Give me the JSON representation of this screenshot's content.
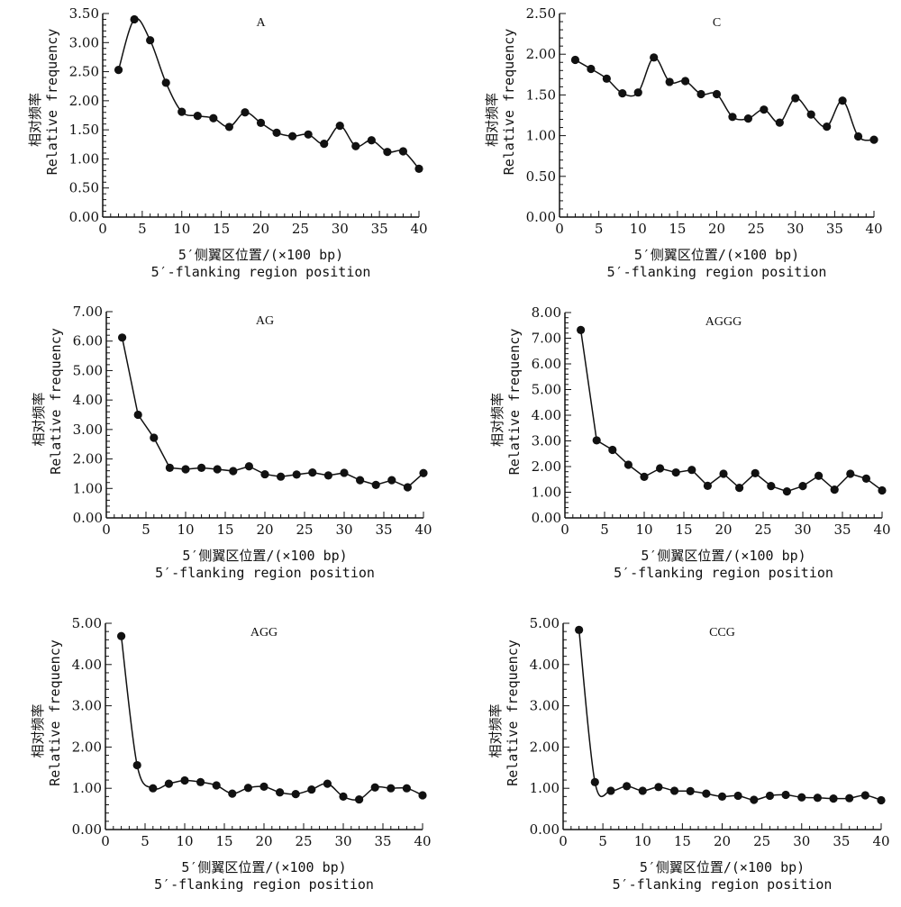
{
  "chart_data": [
    {
      "type": "line",
      "title": "A",
      "xlabel_cn": "5′侧翼区位置/(×100 bp)",
      "xlabel_en": "5′-flanking region position",
      "ylabel_cn": "相对频率",
      "ylabel_en": "Relative frequency",
      "xlim": [
        0,
        40
      ],
      "ylim": [
        0,
        3.5
      ],
      "xticks": [
        "0",
        "5",
        "10",
        "15",
        "20",
        "25",
        "30",
        "35",
        "40"
      ],
      "yticks": [
        "0.00",
        "0.50",
        "1.00",
        "1.50",
        "2.00",
        "2.50",
        "3.00",
        "3.50"
      ],
      "smooth": true,
      "x": [
        2,
        4,
        6,
        8,
        10,
        12,
        14,
        16,
        18,
        20,
        22,
        24,
        26,
        28,
        30,
        32,
        34,
        36,
        38,
        40
      ],
      "values": [
        2.53,
        3.4,
        3.04,
        2.31,
        1.81,
        1.74,
        1.7,
        1.55,
        1.8,
        1.62,
        1.45,
        1.39,
        1.42,
        1.26,
        1.57,
        1.22,
        1.32,
        1.12,
        1.13,
        0.83
      ]
    },
    {
      "type": "line",
      "title": "C",
      "xlabel_cn": "5′侧翼区位置/(×100 bp)",
      "xlabel_en": "5′-flanking region position",
      "ylabel_cn": "相对频率",
      "ylabel_en": "Relative frequency",
      "xlim": [
        0,
        40
      ],
      "ylim": [
        0,
        2.5
      ],
      "xticks": [
        "0",
        "5",
        "10",
        "15",
        "20",
        "25",
        "30",
        "35",
        "40"
      ],
      "yticks": [
        "0.00",
        "0.50",
        "1.00",
        "1.50",
        "2.00",
        "2.50"
      ],
      "smooth": true,
      "x": [
        2,
        4,
        6,
        8,
        10,
        12,
        14,
        16,
        18,
        20,
        22,
        24,
        26,
        28,
        30,
        32,
        34,
        36,
        38,
        40
      ],
      "values": [
        1.93,
        1.82,
        1.7,
        1.52,
        1.53,
        1.96,
        1.66,
        1.67,
        1.51,
        1.51,
        1.23,
        1.21,
        1.32,
        1.16,
        1.46,
        1.26,
        1.11,
        1.43,
        0.99,
        0.95
      ]
    },
    {
      "type": "line",
      "title": "AG",
      "xlabel_cn": "5′侧翼区位置/(×100 bp)",
      "xlabel_en": "5′-flanking region position",
      "ylabel_cn": "相对频率",
      "ylabel_en": "Relative frequency",
      "xlim": [
        0,
        40
      ],
      "ylim": [
        0,
        7
      ],
      "xticks": [
        "0",
        "5",
        "10",
        "15",
        "20",
        "25",
        "30",
        "35",
        "40"
      ],
      "yticks": [
        "0.00",
        "1.00",
        "2.00",
        "3.00",
        "4.00",
        "5.00",
        "6.00",
        "7.00"
      ],
      "smooth": false,
      "x": [
        2,
        4,
        6,
        8,
        10,
        12,
        14,
        16,
        18,
        20,
        22,
        24,
        26,
        28,
        30,
        32,
        34,
        36,
        38,
        40
      ],
      "values": [
        6.12,
        3.5,
        2.72,
        1.7,
        1.65,
        1.7,
        1.65,
        1.59,
        1.75,
        1.48,
        1.4,
        1.47,
        1.54,
        1.44,
        1.53,
        1.28,
        1.12,
        1.28,
        1.04,
        1.52
      ]
    },
    {
      "type": "line",
      "title": "AGGG",
      "xlabel_cn": "5′侧翼区位置/(×100 bp)",
      "xlabel_en": "5′-flanking region position",
      "ylabel_cn": "相对频率",
      "ylabel_en": "Relative frequency",
      "xlim": [
        0,
        40
      ],
      "ylim": [
        0,
        8
      ],
      "xticks": [
        "0",
        "5",
        "10",
        "15",
        "20",
        "25",
        "30",
        "35",
        "40"
      ],
      "yticks": [
        "0.00",
        "1.00",
        "2.00",
        "3.00",
        "4.00",
        "5.00",
        "6.00",
        "7.00",
        "8.00"
      ],
      "smooth": false,
      "x": [
        2,
        4,
        6,
        8,
        10,
        12,
        14,
        16,
        18,
        20,
        22,
        24,
        26,
        28,
        30,
        32,
        34,
        36,
        38,
        40
      ],
      "values": [
        7.32,
        3.02,
        2.65,
        2.07,
        1.6,
        1.93,
        1.77,
        1.87,
        1.25,
        1.72,
        1.17,
        1.74,
        1.24,
        1.03,
        1.24,
        1.64,
        1.1,
        1.72,
        1.53,
        1.07
      ]
    },
    {
      "type": "line",
      "title": "AGG",
      "xlabel_cn": "5′侧翼区位置/(×100 bp)",
      "xlabel_en": "5′-flanking region position",
      "ylabel_cn": "相对频率",
      "ylabel_en": "Relative frequency",
      "xlim": [
        0,
        40
      ],
      "ylim": [
        0,
        5
      ],
      "xticks": [
        "0",
        "5",
        "10",
        "15",
        "20",
        "25",
        "30",
        "35",
        "40"
      ],
      "yticks": [
        "0.00",
        "1.00",
        "2.00",
        "3.00",
        "4.00",
        "5.00"
      ],
      "smooth": true,
      "x": [
        2,
        4,
        6,
        8,
        10,
        12,
        14,
        16,
        18,
        20,
        22,
        24,
        26,
        28,
        30,
        32,
        34,
        36,
        38,
        40
      ],
      "values": [
        4.69,
        1.56,
        1.0,
        1.11,
        1.19,
        1.15,
        1.07,
        0.87,
        1.01,
        1.04,
        0.9,
        0.86,
        0.97,
        1.11,
        0.8,
        0.73,
        1.02,
        1.0,
        1.0,
        0.83
      ]
    },
    {
      "type": "line",
      "title": "CCG",
      "xlabel_cn": "5′侧翼区位置/(×100 bp)",
      "xlabel_en": "5′-flanking region position",
      "ylabel_cn": "相对频率",
      "ylabel_en": "Relative frequency",
      "xlim": [
        0,
        40
      ],
      "ylim": [
        0,
        5
      ],
      "xticks": [
        "0",
        "5",
        "10",
        "15",
        "20",
        "25",
        "30",
        "35",
        "40"
      ],
      "yticks": [
        "0.00",
        "1.00",
        "2.00",
        "3.00",
        "4.00",
        "5.00"
      ],
      "smooth": true,
      "x": [
        2,
        4,
        6,
        8,
        10,
        12,
        14,
        16,
        18,
        20,
        22,
        24,
        26,
        28,
        30,
        32,
        34,
        36,
        38,
        40
      ],
      "values": [
        4.84,
        1.15,
        0.94,
        1.05,
        0.94,
        1.03,
        0.94,
        0.93,
        0.87,
        0.8,
        0.82,
        0.72,
        0.82,
        0.84,
        0.78,
        0.77,
        0.75,
        0.76,
        0.83,
        0.71
      ]
    }
  ]
}
